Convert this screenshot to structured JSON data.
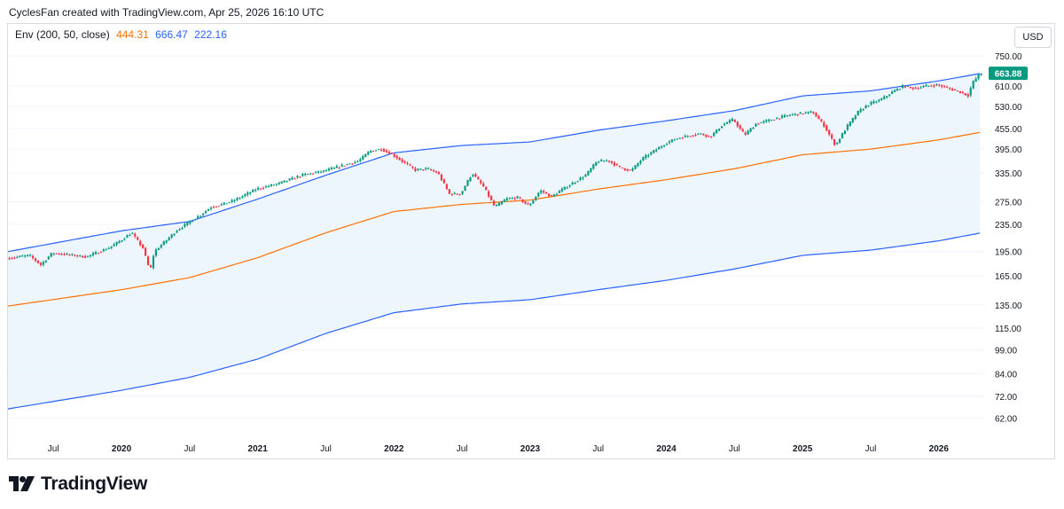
{
  "header": {
    "caption": "CyclesFan created with TradingView.com, Apr 25, 2026 16:10 UTC"
  },
  "legend": {
    "indicator": "Env (200, 50, close)",
    "middle": "444.31",
    "upper": "666.47",
    "lower": "222.16"
  },
  "currency_button": "USD",
  "brand": {
    "name": "TradingView"
  },
  "colors": {
    "up": "#089981",
    "down": "#f23645",
    "envelope": "#2962ff",
    "middle": "#ff7000",
    "fill": "#eef6fd",
    "price_tag": "#089981"
  },
  "chart_data": {
    "type": "candlestick",
    "scale": "log",
    "ylim": [
      56,
      760
    ],
    "y_ticks": [
      "750.00",
      "610.00",
      "530.00",
      "455.00",
      "395.00",
      "335.00",
      "275.00",
      "235.00",
      "195.00",
      "165.00",
      "135.00",
      "115.00",
      "99.00",
      "84.00",
      "72.00",
      "62.00"
    ],
    "x_ticks": [
      "Jul",
      "2020",
      "Jul",
      "2021",
      "Jul",
      "2022",
      "Jul",
      "2023",
      "Jul",
      "2024",
      "Jul",
      "2025",
      "Jul",
      "2026"
    ],
    "x_range": [
      "2019-03",
      "2026-05"
    ],
    "last_price": "663.88",
    "price_points": [
      [
        "2019-03",
        186
      ],
      [
        "2019-05",
        190
      ],
      [
        "2019-06",
        178
      ],
      [
        "2019-07",
        193
      ],
      [
        "2019-09",
        190
      ],
      [
        "2019-10",
        188
      ],
      [
        "2019-12",
        200
      ],
      [
        "2020-01",
        210
      ],
      [
        "2020-02",
        222
      ],
      [
        "2020-03",
        200
      ],
      [
        "2020-03-20",
        170
      ],
      [
        "2020-04",
        195
      ],
      [
        "2020-06",
        226
      ],
      [
        "2020-08",
        250
      ],
      [
        "2020-09",
        265
      ],
      [
        "2020-10",
        270
      ],
      [
        "2020-11",
        277
      ],
      [
        "2021-01",
        300
      ],
      [
        "2021-03",
        312
      ],
      [
        "2021-05",
        330
      ],
      [
        "2021-07",
        340
      ],
      [
        "2021-09",
        356
      ],
      [
        "2021-10",
        364
      ],
      [
        "2021-11",
        390
      ],
      [
        "2021-12",
        395
      ],
      [
        "2022-01",
        380
      ],
      [
        "2022-03",
        342
      ],
      [
        "2022-04",
        345
      ],
      [
        "2022-05",
        335
      ],
      [
        "2022-06",
        290
      ],
      [
        "2022-07",
        290
      ],
      [
        "2022-08",
        335
      ],
      [
        "2022-09",
        305
      ],
      [
        "2022-10",
        265
      ],
      [
        "2022-11",
        280
      ],
      [
        "2022-12",
        283
      ],
      [
        "2023-01",
        267
      ],
      [
        "2023-02",
        297
      ],
      [
        "2023-03",
        285
      ],
      [
        "2023-04",
        300
      ],
      [
        "2023-06",
        330
      ],
      [
        "2023-07",
        363
      ],
      [
        "2023-08",
        365
      ],
      [
        "2023-09",
        348
      ],
      [
        "2023-10",
        340
      ],
      [
        "2023-11",
        370
      ],
      [
        "2024-01",
        410
      ],
      [
        "2024-02",
        425
      ],
      [
        "2024-04",
        440
      ],
      [
        "2024-05",
        430
      ],
      [
        "2024-06",
        465
      ],
      [
        "2024-07",
        485
      ],
      [
        "2024-08",
        435
      ],
      [
        "2024-09",
        470
      ],
      [
        "2024-10",
        480
      ],
      [
        "2024-12",
        500
      ],
      [
        "2025-01",
        505
      ],
      [
        "2025-02",
        510
      ],
      [
        "2025-03",
        465
      ],
      [
        "2025-04",
        405
      ],
      [
        "2025-05",
        460
      ],
      [
        "2025-06",
        510
      ],
      [
        "2025-07",
        540
      ],
      [
        "2025-08",
        555
      ],
      [
        "2025-09",
        585
      ],
      [
        "2025-10",
        610
      ],
      [
        "2025-11",
        600
      ],
      [
        "2025-12",
        610
      ],
      [
        "2026-01",
        615
      ],
      [
        "2026-02",
        600
      ],
      [
        "2026-03",
        585
      ],
      [
        "2026-03-25",
        570
      ],
      [
        "2026-04",
        620
      ],
      [
        "2026-04-24",
        664
      ]
    ],
    "envelope_upper": [
      [
        "2019-03",
        195
      ],
      [
        "2020-01",
        225
      ],
      [
        "2020-07",
        240
      ],
      [
        "2021-01",
        280
      ],
      [
        "2021-07",
        330
      ],
      [
        "2022-01",
        385
      ],
      [
        "2022-07",
        405
      ],
      [
        "2023-01",
        415
      ],
      [
        "2023-07",
        450
      ],
      [
        "2024-01",
        480
      ],
      [
        "2024-07",
        515
      ],
      [
        "2025-01",
        570
      ],
      [
        "2025-07",
        590
      ],
      [
        "2026-01",
        632
      ],
      [
        "2026-04-24",
        666
      ]
    ],
    "envelope_middle": [
      [
        "2019-03",
        134
      ],
      [
        "2020-01",
        150
      ],
      [
        "2020-07",
        163
      ],
      [
        "2021-01",
        187
      ],
      [
        "2021-07",
        222
      ],
      [
        "2022-01",
        257
      ],
      [
        "2022-07",
        270
      ],
      [
        "2023-01",
        278
      ],
      [
        "2023-07",
        300
      ],
      [
        "2024-01",
        320
      ],
      [
        "2024-07",
        345
      ],
      [
        "2025-01",
        380
      ],
      [
        "2025-07",
        395
      ],
      [
        "2026-01",
        421
      ],
      [
        "2026-04-24",
        444
      ]
    ],
    "envelope_lower": [
      [
        "2019-03",
        66
      ],
      [
        "2020-01",
        75
      ],
      [
        "2020-07",
        82
      ],
      [
        "2021-01",
        93
      ],
      [
        "2021-07",
        111
      ],
      [
        "2022-01",
        128
      ],
      [
        "2022-07",
        136
      ],
      [
        "2023-01",
        140
      ],
      [
        "2023-07",
        150
      ],
      [
        "2024-01",
        160
      ],
      [
        "2024-07",
        173
      ],
      [
        "2025-01",
        190
      ],
      [
        "2025-07",
        197
      ],
      [
        "2026-01",
        210
      ],
      [
        "2026-04-24",
        222
      ]
    ]
  }
}
